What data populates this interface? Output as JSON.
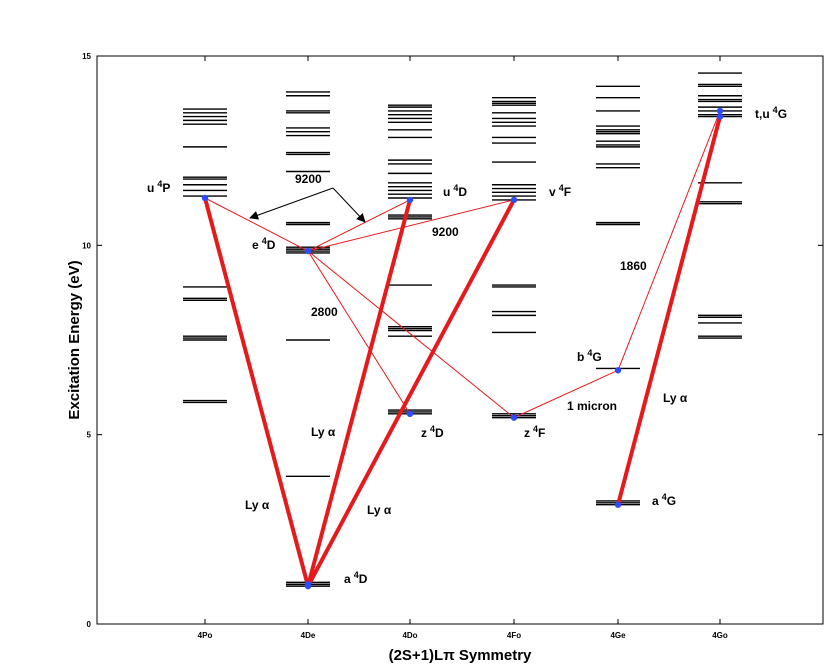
{
  "chart": {
    "x_title": "(2S+1)Lπ Symmetry",
    "y_title": "Excitation Energy (eV)",
    "ylim": [
      0,
      15
    ],
    "y_ticks": [
      "0",
      "5",
      "10",
      "15"
    ],
    "columns": [
      "4Po",
      "4De",
      "4Do",
      "4Fo",
      "4Ge",
      "4Go"
    ],
    "colors": {
      "thick": "#e41a1c",
      "thin": "#e41a1c",
      "dot": "#2d4cff",
      "level": "#000000"
    }
  },
  "levels": [
    {
      "col": 0,
      "energies": [
        5.85,
        5.9,
        7.5,
        7.55,
        7.6,
        8.55,
        8.6,
        8.9,
        11.3,
        11.45,
        11.6,
        11.75,
        11.8,
        12.6,
        13.2,
        13.3,
        13.4,
        13.5,
        13.6
      ]
    },
    {
      "col": 1,
      "energies": [
        1.0,
        1.05,
        1.1,
        3.9,
        7.5,
        9.8,
        9.85,
        9.9,
        9.95,
        10.55,
        10.6,
        11.95,
        12.4,
        12.45,
        12.9,
        13.0,
        13.1,
        13.5,
        13.55,
        13.95,
        14.05
      ]
    },
    {
      "col": 2,
      "energies": [
        5.55,
        5.6,
        5.65,
        7.6,
        7.75,
        7.8,
        7.85,
        8.95,
        10.7,
        10.75,
        10.8,
        11.25,
        11.35,
        11.45,
        11.55,
        11.65,
        11.9,
        12.15,
        12.25,
        12.85,
        13.05,
        13.25,
        13.35,
        13.45,
        13.55,
        13.65,
        13.7
      ]
    },
    {
      "col": 3,
      "energies": [
        5.45,
        5.5,
        5.55,
        7.7,
        8.15,
        8.25,
        8.9,
        8.95,
        11.2,
        11.3,
        11.4,
        11.5,
        11.6,
        12.2,
        12.7,
        12.85,
        13.15,
        13.25,
        13.35,
        13.5,
        13.7,
        13.75,
        13.8,
        13.9
      ]
    },
    {
      "col": 4,
      "energies": [
        3.15,
        3.2,
        3.25,
        6.75,
        10.55,
        10.6,
        12.05,
        12.15,
        12.6,
        12.65,
        12.75,
        12.95,
        13.0,
        13.05,
        13.15,
        13.55,
        13.9,
        14.2
      ]
    },
    {
      "col": 5,
      "energies": [
        7.55,
        7.6,
        7.95,
        8.1,
        8.15,
        11.1,
        11.15,
        11.65,
        13.4,
        13.45,
        13.55,
        13.65,
        13.8,
        13.85,
        13.95,
        14.2,
        14.25,
        14.55
      ]
    }
  ],
  "lines": [
    {
      "from": [
        1,
        1.0
      ],
      "to": [
        0,
        11.25
      ],
      "style": "thick"
    },
    {
      "from": [
        1,
        1.0
      ],
      "to": [
        2,
        11.2
      ],
      "style": "thick"
    },
    {
      "from": [
        1,
        1.0
      ],
      "to": [
        3,
        11.2
      ],
      "style": "thick"
    },
    {
      "from": [
        4,
        3.15
      ],
      "to": [
        5,
        13.4
      ],
      "style": "thick"
    },
    {
      "from": [
        0,
        11.25
      ],
      "to": [
        1,
        9.85
      ],
      "style": "thin"
    },
    {
      "from": [
        1,
        9.85
      ],
      "to": [
        2,
        11.2
      ],
      "style": "thin"
    },
    {
      "from": [
        1,
        9.85
      ],
      "to": [
        3,
        11.2
      ],
      "style": "thin"
    },
    {
      "from": [
        1,
        9.85
      ],
      "to": [
        2,
        5.55
      ],
      "style": "thin"
    },
    {
      "from": [
        1,
        9.85
      ],
      "to": [
        3,
        5.45
      ],
      "style": "thin"
    },
    {
      "from": [
        3,
        5.45
      ],
      "to": [
        4,
        6.7
      ],
      "style": "thin"
    },
    {
      "from": [
        4,
        6.7
      ],
      "to": [
        5,
        13.55
      ],
      "style": "thin"
    }
  ],
  "dots": [
    {
      "col": 0,
      "e": 11.25
    },
    {
      "col": 1,
      "e": 9.85
    },
    {
      "col": 2,
      "e": 11.2
    },
    {
      "col": 3,
      "e": 11.2
    },
    {
      "col": 2,
      "e": 5.55
    },
    {
      "col": 3,
      "e": 5.45
    },
    {
      "col": 4,
      "e": 6.7
    },
    {
      "col": 5,
      "e": 13.55
    },
    {
      "col": 5,
      "e": 13.4
    },
    {
      "col": 4,
      "e": 3.15
    },
    {
      "col": 1,
      "e": 1.0
    },
    {
      "col": 1,
      "e": 1.05
    }
  ],
  "annotations": {
    "u4P": {
      "main": "u",
      "sup": "4",
      "sym": "P"
    },
    "e4D": {
      "main": "e",
      "sup": "4",
      "sym": "D"
    },
    "u4D": {
      "main": "u",
      "sup": "4",
      "sym": "D"
    },
    "v4F": {
      "main": "v",
      "sup": "4",
      "sym": "F"
    },
    "tu4G": {
      "main": "t,u",
      "sup": "4",
      "sym": "G"
    },
    "b4G": {
      "main": "b",
      "sup": "4",
      "sym": "G"
    },
    "a4G": {
      "main": "a",
      "sup": "4",
      "sym": "G"
    },
    "z4D": {
      "main": "z",
      "sup": "4",
      "sym": "D"
    },
    "z4F": {
      "main": "z",
      "sup": "4",
      "sym": "F"
    },
    "a4D": {
      "main": "a",
      "sup": "4",
      "sym": "D"
    },
    "w9200_top": "9200",
    "w9200_right": "9200",
    "w2800": "2800",
    "w1860": "1860",
    "w1micron": "1 micron",
    "lya_a": "Ly α",
    "lya_b": "Ly α",
    "lya_c": "Ly α",
    "lya_d": "Ly α"
  }
}
